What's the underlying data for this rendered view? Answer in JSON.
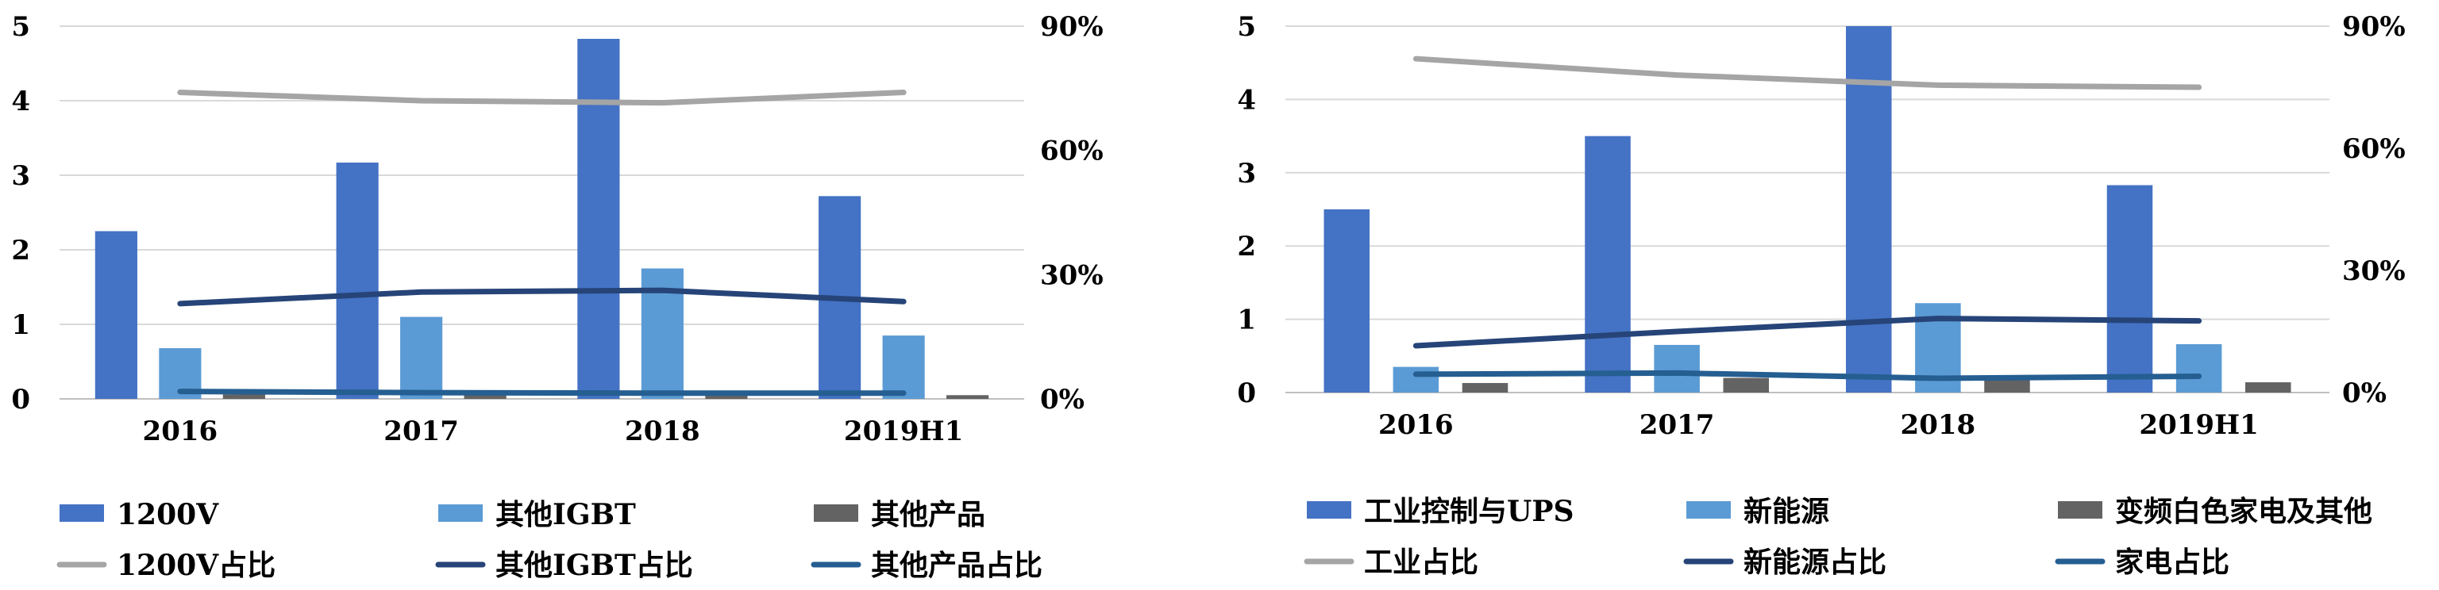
{
  "chart_data": [
    {
      "type": "bar",
      "categories": [
        "2016",
        "2017",
        "2018",
        "2019H1"
      ],
      "ylim": [
        0,
        5
      ],
      "y_ticks": [
        "0",
        "1",
        "2",
        "3",
        "4",
        "5"
      ],
      "y2lim": [
        0,
        90
      ],
      "y2_ticks": [
        "0%",
        "30%",
        "60%",
        "90%"
      ],
      "grid": true,
      "legend_position": "bottom",
      "series": [
        {
          "name": "1200V",
          "kind": "bar",
          "axis": "left",
          "color": "#4472C4",
          "values": [
            2.25,
            3.17,
            4.83,
            2.72
          ]
        },
        {
          "name": "其他IGBT",
          "kind": "bar",
          "axis": "left",
          "color": "#5B9BD5",
          "values": [
            0.68,
            1.1,
            1.75,
            0.85
          ]
        },
        {
          "name": "其他产品",
          "kind": "bar",
          "axis": "left",
          "color": "#636363",
          "values": [
            0.06,
            0.05,
            0.06,
            0.05
          ]
        },
        {
          "name": "1200V占比",
          "kind": "line",
          "axis": "right",
          "color": "#A5A5A5",
          "values": [
            74,
            72,
            71.5,
            74
          ]
        },
        {
          "name": "其他IGBT占比",
          "kind": "line",
          "axis": "right",
          "color": "#264478",
          "values": [
            23,
            25.8,
            26.2,
            23.5
          ]
        },
        {
          "name": "其他产品占比",
          "kind": "line",
          "axis": "right",
          "color": "#255E91",
          "values": [
            1.8,
            1.5,
            1.4,
            1.4
          ]
        }
      ]
    },
    {
      "type": "bar",
      "categories": [
        "2016",
        "2017",
        "2018",
        "2019H1"
      ],
      "ylim": [
        0,
        5
      ],
      "y_ticks": [
        "0",
        "1",
        "2",
        "3",
        "4",
        "5"
      ],
      "y2lim": [
        0,
        90
      ],
      "y2_ticks": [
        "0%",
        "30%",
        "60%",
        "90%"
      ],
      "grid": true,
      "legend_position": "bottom",
      "series": [
        {
          "name": "工业控制与UPS",
          "kind": "bar",
          "axis": "left",
          "color": "#4472C4",
          "values": [
            2.5,
            3.5,
            5.0,
            2.83
          ]
        },
        {
          "name": "新能源",
          "kind": "bar",
          "axis": "left",
          "color": "#5B9BD5",
          "values": [
            0.35,
            0.65,
            1.22,
            0.66
          ]
        },
        {
          "name": "变频白色家电及其他",
          "kind": "bar",
          "axis": "left",
          "color": "#636363",
          "values": [
            0.13,
            0.2,
            0.2,
            0.14
          ]
        },
        {
          "name": "工业占比",
          "kind": "line",
          "axis": "right",
          "color": "#A5A5A5",
          "values": [
            82,
            78,
            75.5,
            75
          ]
        },
        {
          "name": "新能源占比",
          "kind": "line",
          "axis": "right",
          "color": "#264478",
          "values": [
            11.5,
            15,
            18.2,
            17.6
          ]
        },
        {
          "name": "家电占比",
          "kind": "line",
          "axis": "right",
          "color": "#255E91",
          "values": [
            4.5,
            4.8,
            3.5,
            4.0
          ]
        }
      ]
    }
  ]
}
